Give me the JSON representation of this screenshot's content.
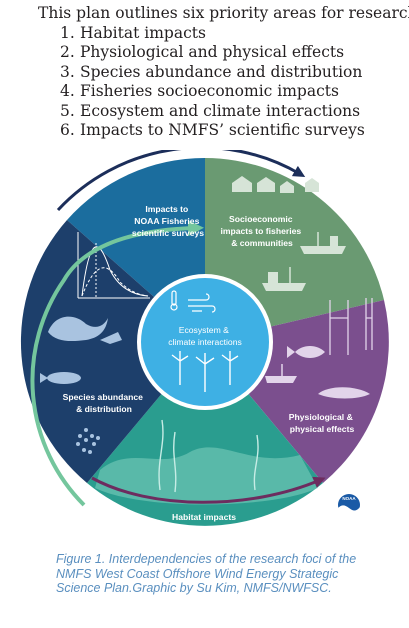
{
  "intro": "This plan outlines six priority areas for research:",
  "priority_areas": [
    {
      "num": "1.",
      "text": "Habitat impacts"
    },
    {
      "num": "2.",
      "text": "Physiological and physical effects"
    },
    {
      "num": "3.",
      "text": "Species abundance and distribution"
    },
    {
      "num": "4.",
      "text": "Fisheries socioeconomic impacts"
    },
    {
      "num": "5.",
      "text": "Ecosystem and climate interactions"
    },
    {
      "num": "6.",
      "text": "Impacts to NMFS’ scientific surveys"
    }
  ],
  "wheel": {
    "surveys_label": [
      "Impacts to",
      "NOAA Fisheries",
      "scientific surveys"
    ],
    "socio_label": [
      "Socioeconomic",
      "impacts to fisheries",
      "& communities"
    ],
    "physio_label": [
      "Physiological &",
      "physical effects"
    ],
    "habitat_label": "Habitat impacts",
    "species_label": [
      "Species abundance",
      "& distribution"
    ],
    "center_label": [
      "Ecosystem &",
      "climate interactions"
    ],
    "logo_text": "NOAA",
    "colors": {
      "surveys": "#1b6d9e",
      "socio": "#6a9a72",
      "physio": "#7b4f8e",
      "habitat": "#2a9d8f",
      "species": "#1d3f6b",
      "center": "#3eb0e4",
      "arrow": "#74c69d"
    }
  },
  "caption": [
    "Figure 1. Interdependencies of the research foci of the",
    "NMFS West Coast Offshore Wind Energy Strategic",
    "Science Plan.Graphic by Su Kim, NMFS/NWFSC."
  ]
}
